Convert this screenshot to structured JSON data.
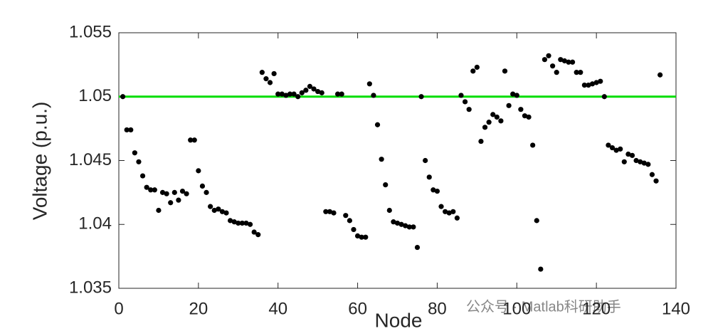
{
  "chart_data": {
    "type": "scatter",
    "xlabel": "Node",
    "ylabel": "Voltage (p.u.)",
    "x": [
      1,
      2,
      3,
      4,
      5,
      6,
      7,
      8,
      9,
      10,
      11,
      12,
      13,
      14,
      15,
      16,
      17,
      18,
      19,
      20,
      21,
      22,
      23,
      24,
      25,
      26,
      27,
      28,
      29,
      30,
      31,
      32,
      33,
      34,
      35,
      36,
      37,
      38,
      39,
      40,
      41,
      42,
      43,
      44,
      45,
      46,
      47,
      48,
      49,
      50,
      51,
      52,
      53,
      54,
      55,
      56,
      57,
      58,
      59,
      60,
      61,
      62,
      63,
      64,
      65,
      66,
      67,
      68,
      69,
      70,
      71,
      72,
      73,
      74,
      75,
      76,
      77,
      78,
      79,
      80,
      81,
      82,
      83,
      84,
      85,
      86,
      87,
      88,
      89,
      90,
      91,
      92,
      93,
      94,
      95,
      96,
      97,
      98,
      99,
      100,
      101,
      102,
      103,
      104,
      105,
      106,
      107,
      108,
      109,
      110,
      111,
      112,
      113,
      114,
      115,
      116,
      117,
      118,
      119,
      120,
      121,
      122,
      123,
      124,
      125,
      126,
      127,
      128,
      129,
      130,
      131,
      132,
      133,
      134,
      135,
      136
    ],
    "series": [
      {
        "name": "Voltage",
        "color": "#000000",
        "values": [
          1.05,
          1.0474,
          1.0474,
          1.0456,
          1.0449,
          1.0438,
          1.0429,
          1.0427,
          1.0427,
          1.0411,
          1.0425,
          1.0424,
          1.0417,
          1.0425,
          1.0419,
          1.0426,
          1.0424,
          1.0466,
          1.0466,
          1.0442,
          1.043,
          1.0425,
          1.0414,
          1.0411,
          1.0412,
          1.041,
          1.0409,
          1.0403,
          1.0402,
          1.0401,
          1.0401,
          1.0401,
          1.04,
          1.0394,
          1.0392,
          1.0519,
          1.0514,
          1.0511,
          1.0518,
          1.0502,
          1.0502,
          1.0501,
          1.0502,
          1.0502,
          1.05,
          1.0503,
          1.0505,
          1.0508,
          1.0506,
          1.0504,
          1.0503,
          1.041,
          1.041,
          1.0409,
          1.0502,
          1.0502,
          1.0407,
          1.0403,
          1.0396,
          1.0391,
          1.039,
          1.039,
          1.051,
          1.0501,
          1.0478,
          1.0451,
          1.0431,
          1.0411,
          1.0402,
          1.0401,
          1.04,
          1.0399,
          1.0398,
          1.0398,
          1.0382,
          1.05,
          1.045,
          1.0437,
          1.0427,
          1.0426,
          1.0414,
          1.041,
          1.0409,
          1.041,
          1.0405,
          1.0501,
          1.0496,
          1.049,
          1.052,
          1.0523,
          1.0465,
          1.0476,
          1.048,
          1.0486,
          1.0484,
          1.0481,
          1.052,
          1.0493,
          1.0502,
          1.0501,
          1.049,
          1.0485,
          1.0484,
          1.0462,
          1.0403,
          1.0365,
          1.0529,
          1.0532,
          1.0524,
          1.0519,
          1.0529,
          1.0528,
          1.0527,
          1.0527,
          1.0519,
          1.0519,
          1.0509,
          1.0509,
          1.051,
          1.0511,
          1.0512,
          1.05,
          1.0462,
          1.046,
          1.0458,
          1.0459,
          1.0449,
          1.0455,
          1.0454,
          1.045,
          1.0449,
          1.0448,
          1.0447,
          1.0439,
          1.0434,
          1.0517
        ]
      }
    ],
    "xlim": [
      0,
      140
    ],
    "xticks": [
      0,
      20,
      40,
      60,
      80,
      100,
      120,
      140
    ],
    "ylim": [
      1.035,
      1.055
    ],
    "yticks": [
      1.035,
      1.04,
      1.045,
      1.05,
      1.055
    ],
    "reference_line": {
      "value": 1.05,
      "color": "#00dd00"
    },
    "watermark": "公众号 · Matlab科研助手"
  }
}
